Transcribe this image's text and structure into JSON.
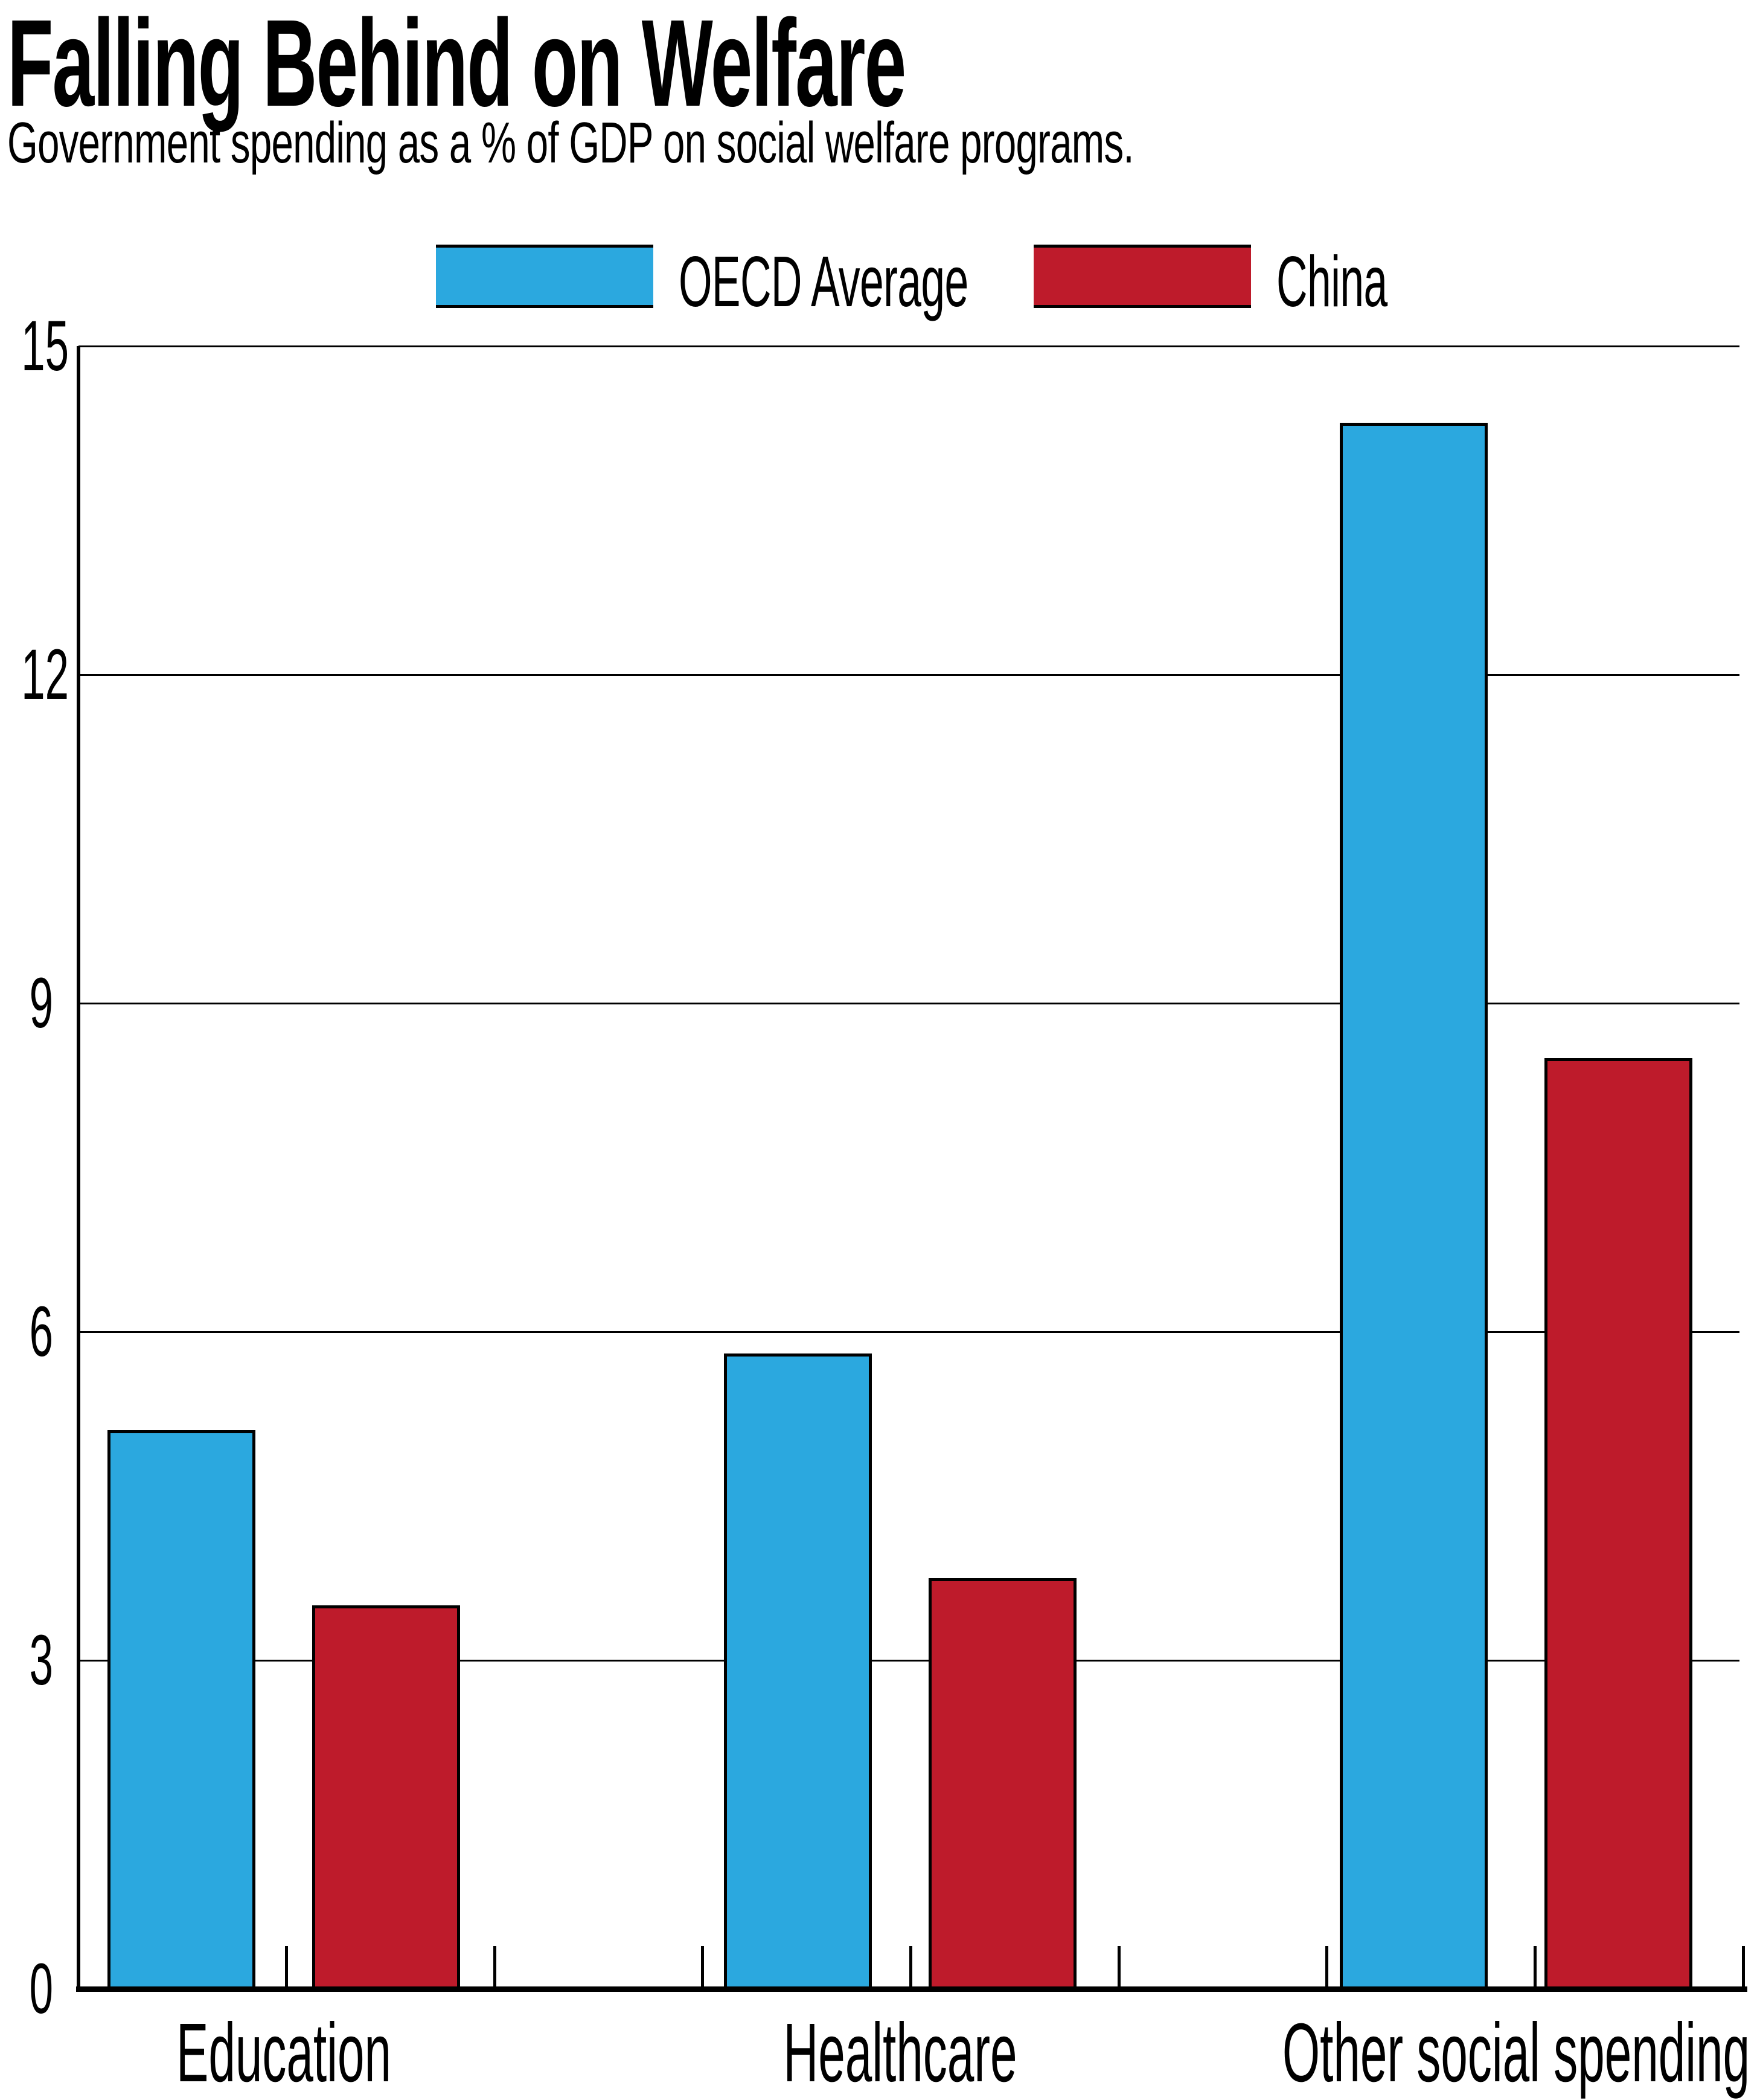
{
  "header": {
    "title": "Falling Behind on Welfare",
    "subtitle": "Government spending as a % of GDP on social welfare programs."
  },
  "legend": {
    "position": "top",
    "items": [
      {
        "label": "OECD Average",
        "color": "#2BA8DF"
      },
      {
        "label": "China",
        "color": "#BE1B2B"
      }
    ]
  },
  "chart_data": {
    "type": "bar",
    "title": "Falling Behind on Welfare",
    "subtitle": "Government spending as a % of GDP on social welfare programs.",
    "categories": [
      "Education",
      "Healthcare",
      "Other social spending"
    ],
    "series": [
      {
        "name": "OECD Average",
        "color": "#2BA8DF",
        "values": [
          5.1,
          5.8,
          14.3
        ]
      },
      {
        "name": "China",
        "color": "#BE1B2B",
        "values": [
          3.5,
          3.75,
          8.5
        ]
      }
    ],
    "xlabel": "",
    "ylabel": "",
    "ylim": [
      0,
      15
    ],
    "yticks": [
      0,
      3,
      6,
      9,
      12,
      15
    ],
    "grid": true,
    "legend_position": "top",
    "bar_outline_color": "#000000",
    "axis_color": "#000000",
    "background_color": "#ffffff"
  }
}
